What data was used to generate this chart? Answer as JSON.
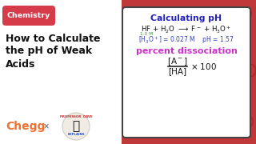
{
  "bg_color": "#ffffff",
  "right_bg_color": "#c0373a",
  "chemistry_pill_color": "#d63b4a",
  "chemistry_text": "Chemistry",
  "chemistry_text_color": "#ffffff",
  "title_line1": "How to Calculate",
  "title_line2": "the pH of Weak",
  "title_line3": "Acids",
  "title_color": "#111111",
  "chegg_color": "#f07030",
  "card_bg": "#ffffff",
  "card_border_color": "#444444",
  "calc_ph_title": "Calculating pH",
  "calc_ph_color": "#2222bb",
  "reaction_color": "#111111",
  "conc_label": "1.0 M",
  "conc_label_color": "#3a9a3a",
  "result_color": "#3344bb",
  "percent_diss_color": "#cc33cc",
  "formula_color": "#111111",
  "cross_color": "#555555",
  "icon_color": "#a01520"
}
